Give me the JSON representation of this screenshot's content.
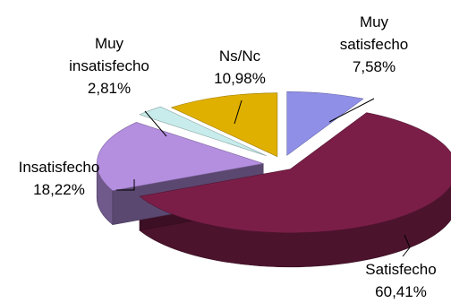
{
  "chart_data": {
    "type": "pie",
    "three_d": true,
    "exploded": true,
    "title": "",
    "slices": [
      {
        "name_lines": [
          "Muy",
          "satisfecho"
        ],
        "label": "7,58%",
        "value": 7.58,
        "color": "#8f8fe8"
      },
      {
        "name_lines": [
          "Satisfecho"
        ],
        "label": "60,41%",
        "value": 60.41,
        "color": "#7a1e48"
      },
      {
        "name_lines": [
          "Insatisfecho"
        ],
        "label": "18,22%",
        "value": 18.22,
        "color": "#b48fe0"
      },
      {
        "name_lines": [
          "Muy",
          "insatisfecho"
        ],
        "label": "2,81%",
        "value": 2.81,
        "color": "#c8ecec"
      },
      {
        "name_lines": [
          "Ns/Nc"
        ],
        "label": "10,98%",
        "value": 10.98,
        "color": "#e0b000"
      }
    ]
  }
}
